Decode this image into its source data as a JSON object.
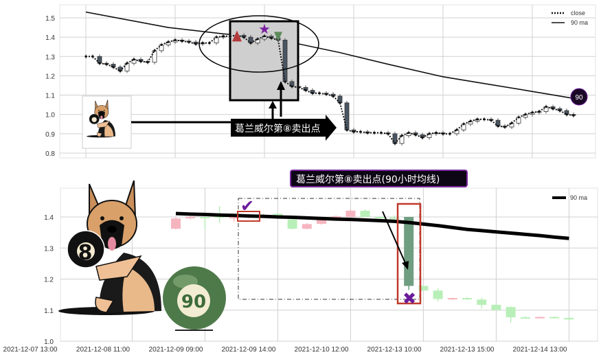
{
  "chart_data": [
    {
      "type": "candlestick+line",
      "panel": "top",
      "ylim": [
        0.78,
        1.56
      ],
      "yticks": [
        "0.8",
        "0.9",
        "1.0",
        "1.1",
        "1.2",
        "1.3",
        "1.4",
        "1.5"
      ],
      "grid": true,
      "legend": {
        "placement": "top-right",
        "entries": [
          "close",
          "90 ma"
        ]
      },
      "series": [
        {
          "name": "close",
          "style": "dotted",
          "values": [
            1.3,
            1.3,
            1.265,
            1.26,
            1.245,
            1.225,
            1.265,
            1.285,
            1.275,
            1.27,
            1.33,
            1.36,
            1.375,
            1.385,
            1.38,
            1.375,
            1.365,
            1.37,
            1.37,
            1.4,
            1.405,
            1.405,
            1.41,
            1.4,
            1.37,
            1.39,
            1.405,
            1.395,
            1.385,
            1.17,
            1.145,
            1.14,
            1.125,
            1.11,
            1.11,
            1.105,
            1.095,
            1.06,
            0.92,
            0.91,
            0.91,
            0.905,
            0.905,
            0.905,
            0.9,
            0.85,
            0.89,
            0.905,
            0.895,
            0.88,
            0.9,
            0.905,
            0.9,
            0.9,
            0.92,
            0.95,
            0.965,
            0.975,
            0.975,
            0.97,
            0.94,
            0.935,
            0.955,
            0.985,
            1.0,
            1.01,
            1.015,
            1.04,
            1.03,
            1.02,
            1.0,
            0.995
          ]
        },
        {
          "name": "90 ma",
          "style": "solid",
          "x": [
            0,
            12,
            20,
            28,
            31,
            37,
            44,
            52,
            58,
            64,
            71
          ],
          "values": [
            1.53,
            1.45,
            1.417,
            1.395,
            1.365,
            1.32,
            1.26,
            1.195,
            1.16,
            1.125,
            1.083
          ]
        }
      ],
      "markers": [
        {
          "kind": "triangle-up",
          "color": "#b33a3a",
          "index": 22
        },
        {
          "kind": "star",
          "color": "#7a1fa0",
          "index": 26
        },
        {
          "kind": "triangle-down",
          "color": "#5d8a5a",
          "index": 28
        }
      ],
      "annotation": {
        "text": "葛兰威尔第⑧卖出点",
        "end_badge": "90"
      }
    },
    {
      "type": "candlestick+line",
      "panel": "bottom",
      "title": "葛兰威尔第⑧卖出点(90小时均线)",
      "ylim": [
        1.0,
        1.49
      ],
      "yticks": [
        "1.0",
        "1.1",
        "1.2",
        "1.3",
        "1.4"
      ],
      "xticks": [
        "2021-12-07 13:00",
        "2021-12-08 11:00",
        "2021-12-09 09:00",
        "2021-12-09 14:00",
        "2021-12-10 12:00",
        "2021-12-13 10:00",
        "2021-12-13 15:00",
        "2021-12-14 13:00"
      ],
      "grid": true,
      "legend": {
        "placement": "top-right",
        "entries": [
          "90 ma"
        ]
      },
      "colors": {
        "up": "#f5b5bf",
        "down": "#b8efb8",
        "signal_candle": "#6f9e80",
        "ma": "#000000",
        "box": "#c0392b",
        "marker": "#6a1b9a"
      },
      "candles": [
        [
          1.362,
          1.4,
          1.36,
          1.395
        ],
        [
          1.397,
          1.402,
          1.392,
          1.4
        ],
        [
          1.4,
          1.4,
          1.36,
          1.399
        ],
        [
          1.402,
          1.435,
          1.38,
          1.398
        ],
        [
          1.398,
          1.405,
          1.385,
          1.4
        ],
        [
          1.4,
          1.41,
          1.395,
          1.402
        ],
        [
          1.405,
          1.41,
          1.4,
          1.403
        ],
        [
          1.41,
          1.412,
          1.4,
          1.403
        ],
        [
          1.392,
          1.395,
          1.36,
          1.362
        ],
        [
          1.362,
          1.38,
          1.36,
          1.377
        ],
        [
          1.378,
          1.4,
          1.375,
          1.398
        ],
        [
          1.4,
          1.405,
          1.395,
          1.402
        ],
        [
          1.4,
          1.425,
          1.4,
          1.42
        ],
        [
          1.42,
          1.425,
          1.4,
          1.4
        ],
        [
          1.4,
          1.403,
          1.395,
          1.396
        ],
        [
          1.398,
          1.405,
          1.39,
          1.397
        ],
        [
          1.4,
          1.4,
          1.165,
          1.178
        ],
        [
          1.178,
          1.18,
          1.163,
          1.163
        ],
        [
          1.163,
          1.17,
          1.128,
          1.136
        ],
        [
          1.137,
          1.14,
          1.133,
          1.139
        ],
        [
          1.139,
          1.142,
          1.133,
          1.137
        ],
        [
          1.134,
          1.14,
          1.105,
          1.117
        ],
        [
          1.117,
          1.12,
          1.1,
          1.1
        ],
        [
          1.11,
          1.112,
          1.06,
          1.077
        ],
        [
          1.077,
          1.08,
          1.075,
          1.076
        ],
        [
          1.076,
          1.079,
          1.074,
          1.078
        ],
        [
          1.078,
          1.08,
          1.074,
          1.076
        ],
        [
          1.075,
          1.077,
          1.068,
          1.07
        ]
      ],
      "candle_fields": [
        "open",
        "high",
        "low",
        "close"
      ],
      "series": [
        {
          "name": "90 ma",
          "values": [
            1.411,
            1.409,
            1.408,
            1.406,
            1.405,
            1.403,
            1.402,
            1.4,
            1.399,
            1.397,
            1.395,
            1.393,
            1.392,
            1.39,
            1.388,
            1.386,
            1.382,
            1.377,
            1.372,
            1.366,
            1.36,
            1.356,
            1.352,
            1.348,
            1.344,
            1.34,
            1.335,
            1.331
          ]
        }
      ],
      "signal_index": 16,
      "buy_check_index": 5
    }
  ],
  "illustration": {
    "ball_eight": "8",
    "ball_ninety": "90"
  }
}
